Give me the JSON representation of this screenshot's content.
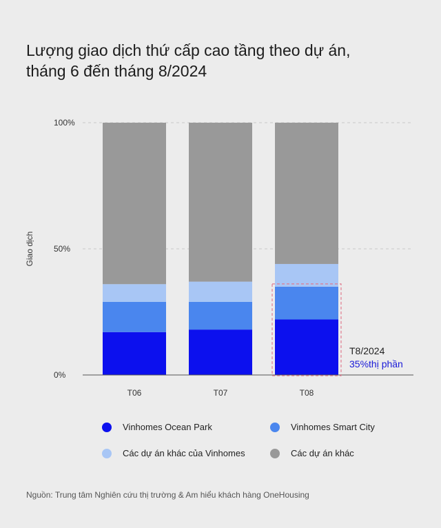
{
  "title_line1": "Lượng giao dịch thứ cấp cao tầng theo dự án,",
  "title_line2": "tháng 6 đến tháng 8/2024",
  "source": "Nguồn: Trung tâm Nghiên cứu thị trường & Am hiểu khách hàng OneHousing",
  "colors": {
    "background": "#ececec",
    "ocean_park": "#0c10ee",
    "smart_city": "#4a86ee",
    "other_vinhomes": "#a8c6f5",
    "other_projects": "#999999",
    "annotation": "#1a1ad8",
    "highlight_box": "#e07a8e"
  },
  "chart_data": {
    "type": "bar",
    "stacked": true,
    "categories": [
      "T06",
      "T07",
      "T08"
    ],
    "ylabel": "Giao dịch",
    "ylim": [
      0,
      100
    ],
    "yticks": [
      "0%",
      "50%",
      "100%"
    ],
    "grid": true,
    "series": [
      {
        "name": "Vinhomes Ocean Park",
        "values": [
          17,
          18,
          22
        ]
      },
      {
        "name": "Vinhomes Smart City",
        "values": [
          12,
          11,
          13
        ]
      },
      {
        "name": "Các dự án khác của Vinhomes",
        "values": [
          7,
          8,
          9
        ]
      },
      {
        "name": "Các dự án khác",
        "values": [
          64,
          63,
          56
        ]
      }
    ],
    "annotation": {
      "category": "T08",
      "line1": "T8/2024",
      "line2": "35%thị phần"
    },
    "legend_position": "bottom"
  }
}
